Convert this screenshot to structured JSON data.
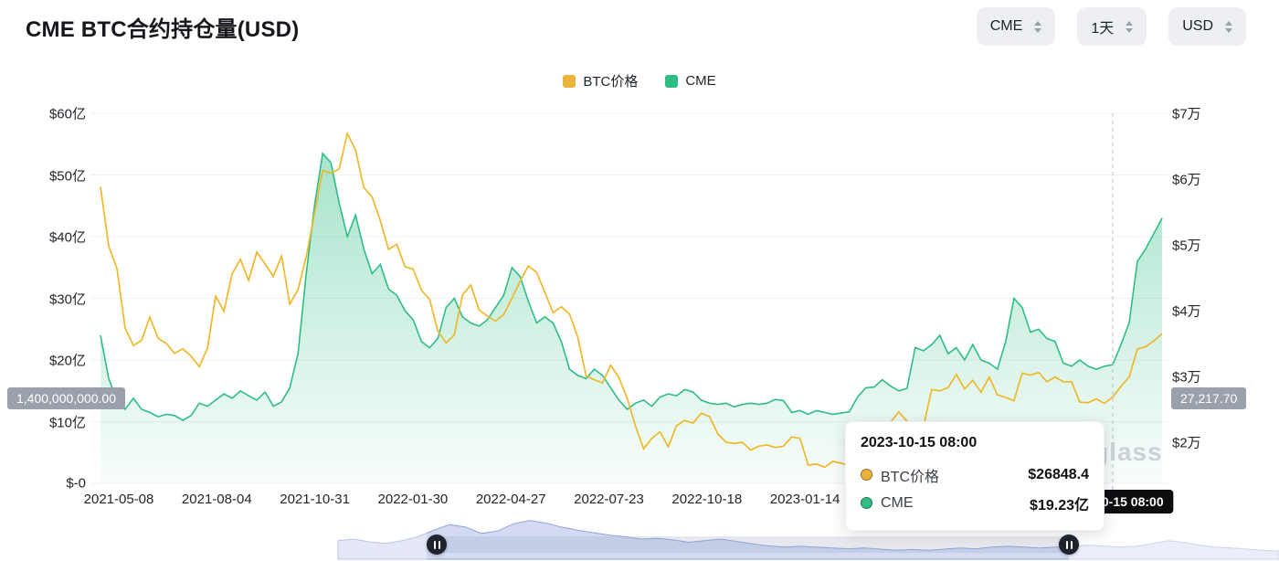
{
  "page": {
    "title": "CME BTC合约持仓量(USD)",
    "watermark": "nglass"
  },
  "controls": [
    {
      "label": "CME"
    },
    {
      "label": "1天"
    },
    {
      "label": "USD"
    }
  ],
  "legend": [
    {
      "label": "BTC价格",
      "color": "#E9B33C"
    },
    {
      "label": "CME",
      "color": "#2EBD85"
    }
  ],
  "axes": {
    "left_ticks": [
      {
        "label": "$60亿",
        "value": 60
      },
      {
        "label": "$50亿",
        "value": 50
      },
      {
        "label": "$40亿",
        "value": 40
      },
      {
        "label": "$30亿",
        "value": 30
      },
      {
        "label": "$20亿",
        "value": 20
      },
      {
        "label": "$10亿",
        "value": 10
      },
      {
        "label": "$-0",
        "value": 0
      }
    ],
    "right_ticks": [
      {
        "label": "$7万",
        "value": 7
      },
      {
        "label": "$6万",
        "value": 6
      },
      {
        "label": "$5万",
        "value": 5
      },
      {
        "label": "$4万",
        "value": 4
      },
      {
        "label": "$3万",
        "value": 3
      },
      {
        "label": "$2万",
        "value": 2
      }
    ],
    "x_ticks": [
      "2021-05-08",
      "2021-08-04",
      "2021-10-31",
      "2022-01-30",
      "2022-04-27",
      "2022-07-23",
      "2022-10-18",
      "2023-01-14"
    ]
  },
  "crosshair": {
    "date_label": "2023-10-15 08:00",
    "left_value": "1,400,000,000.00",
    "right_value": "27,217.70",
    "index": 123
  },
  "tooltip": {
    "title": "2023-10-15 08:00",
    "rows": [
      {
        "label": "BTC价格",
        "value": "$26848.4",
        "color": "#E9B33C"
      },
      {
        "label": "CME",
        "value": "$19.23亿",
        "color": "#2EBD85"
      }
    ]
  },
  "chart_data": {
    "type": "line",
    "title": "CME BTC合约持仓量(USD)",
    "x_range": [
      "2021-05-08",
      "2023-10-28"
    ],
    "left_axis": {
      "unit": "亿 USD",
      "range": [
        0,
        60
      ],
      "series": "CME"
    },
    "right_axis": {
      "unit": "万 USD",
      "range": [
        1.4,
        7
      ],
      "series": "BTC价格"
    },
    "series": [
      {
        "name": "BTC价格",
        "axis": "right",
        "color": "#E9B33C",
        "unit": "USD",
        "values": [
          58800,
          49800,
          46400,
          37300,
          34700,
          35500,
          39000,
          35800,
          35000,
          33500,
          34200,
          33100,
          31500,
          34300,
          42200,
          39900,
          45600,
          47800,
          44600,
          48900,
          47100,
          45200,
          48300,
          41000,
          43200,
          48200,
          54700,
          61300,
          60900,
          61500,
          66900,
          64400,
          58700,
          57300,
          53700,
          49300,
          50100,
          46700,
          46300,
          43100,
          41700,
          36900,
          35100,
          36300,
          42400,
          43900,
          40100,
          39200,
          38400,
          39400,
          41900,
          44500,
          46800,
          45800,
          42800,
          39700,
          40600,
          39500,
          36000,
          30100,
          29500,
          29000,
          31700,
          29800,
          26700,
          22500,
          19000,
          20600,
          21600,
          19300,
          22500,
          23300,
          22900,
          24400,
          23900,
          21300,
          20000,
          19800,
          20000,
          18800,
          19400,
          19600,
          19200,
          19400,
          20800,
          20600,
          16500,
          16700,
          16200,
          17100,
          16800,
          16500,
          16600,
          16900,
          21000,
          22900,
          23000,
          24600,
          23200,
          21800,
          22400,
          28000,
          27800,
          28300,
          30300,
          28100,
          29400,
          27600,
          29900,
          27200,
          26800,
          26300,
          30500,
          30200,
          30600,
          29200,
          29900,
          29200,
          29200,
          26100,
          26000,
          26600,
          25900,
          26848,
          28500,
          29900,
          34200,
          34500,
          35400,
          36500
        ]
      },
      {
        "name": "CME",
        "axis": "left",
        "color": "#2EBD85",
        "unit": "1e8 USD",
        "values": [
          24.0,
          17.0,
          13.5,
          12.0,
          13.8,
          12.0,
          11.5,
          10.8,
          11.2,
          11.0,
          10.2,
          11.0,
          13.0,
          12.5,
          13.5,
          14.5,
          13.8,
          15.0,
          14.2,
          13.5,
          14.8,
          12.5,
          13.2,
          15.5,
          21.0,
          34.0,
          45.0,
          53.5,
          52.0,
          45.5,
          40.0,
          43.5,
          38.0,
          34.0,
          35.5,
          31.5,
          30.5,
          28.0,
          26.5,
          23.0,
          22.0,
          23.5,
          28.5,
          30.0,
          27.0,
          26.0,
          25.5,
          26.5,
          28.5,
          30.5,
          35.0,
          33.5,
          29.5,
          26.0,
          27.0,
          26.0,
          23.0,
          18.5,
          17.5,
          17.0,
          18.5,
          17.5,
          15.5,
          13.5,
          12.0,
          13.0,
          13.5,
          12.5,
          14.0,
          14.5,
          14.2,
          15.2,
          14.8,
          13.5,
          13.0,
          12.8,
          13.0,
          12.4,
          12.8,
          13.0,
          12.8,
          13.0,
          13.6,
          13.4,
          11.5,
          11.8,
          11.2,
          11.8,
          11.5,
          11.2,
          11.4,
          11.6,
          14.0,
          15.5,
          15.6,
          16.8,
          15.8,
          15.0,
          15.4,
          22.0,
          21.5,
          22.5,
          24.0,
          21.0,
          22.0,
          20.0,
          22.5,
          20.0,
          19.5,
          18.5,
          23.0,
          30.0,
          28.5,
          24.5,
          25.0,
          23.5,
          23.0,
          19.5,
          19.0,
          20.0,
          19.0,
          18.5,
          19.0,
          19.23,
          22.5,
          26.0,
          36.0,
          38.0,
          40.5,
          43.0
        ]
      }
    ],
    "navigator_profile": [
      0.46,
      0.5,
      0.43,
      0.39,
      0.46,
      0.56,
      0.72,
      0.86,
      0.8,
      0.64,
      0.7,
      0.88,
      0.96,
      0.9,
      0.8,
      0.72,
      0.66,
      0.6,
      0.56,
      0.5,
      0.52,
      0.48,
      0.42,
      0.46,
      0.5,
      0.44,
      0.38,
      0.33,
      0.3,
      0.32,
      0.3,
      0.28,
      0.26,
      0.28,
      0.25,
      0.22,
      0.24,
      0.22,
      0.25,
      0.28,
      0.26,
      0.3,
      0.32,
      0.3,
      0.28,
      0.3,
      0.32,
      0.35,
      0.33,
      0.3,
      0.32,
      0.38,
      0.46,
      0.42,
      0.35,
      0.3,
      0.28,
      0.25,
      0.22,
      0.2
    ]
  }
}
